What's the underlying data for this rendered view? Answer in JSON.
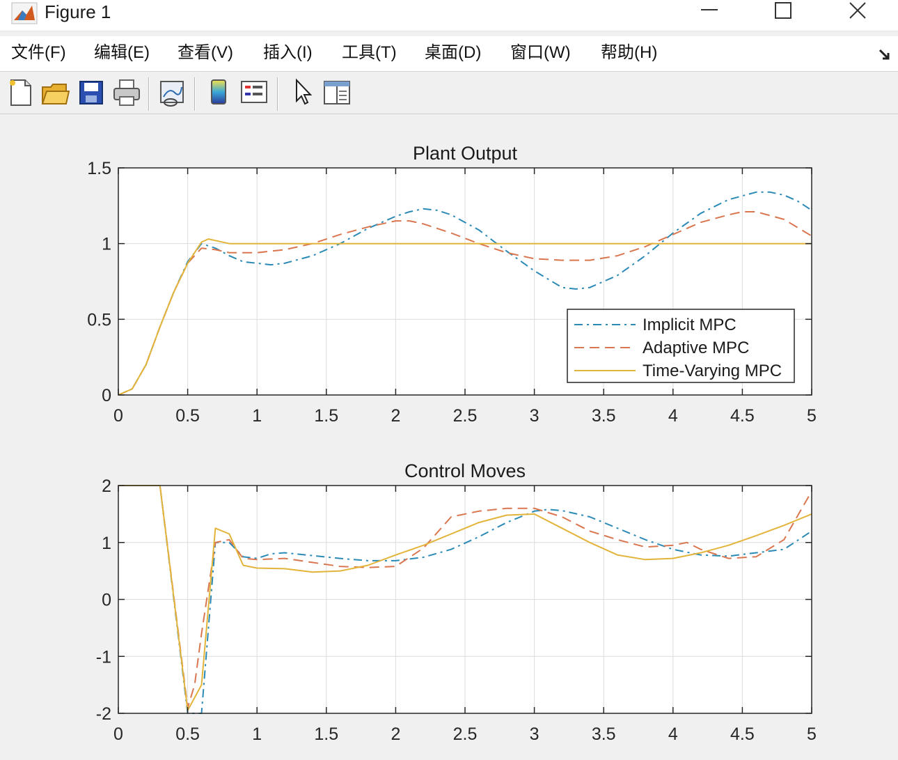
{
  "window": {
    "title": "Figure 1",
    "app_icon": "matlab-logo-icon",
    "controls": [
      "minimize-icon",
      "maximize-icon",
      "close-icon"
    ]
  },
  "menu": {
    "items": [
      "文件(F)",
      "编辑(E)",
      "查看(V)",
      "插入(I)",
      "工具(T)",
      "桌面(D)",
      "窗口(W)",
      "帮助(H)"
    ],
    "dock_icon": "dock-arrow-icon"
  },
  "toolbar": {
    "buttons": [
      "new-figure-icon",
      "open-file-icon",
      "save-icon",
      "print-icon",
      "link-plot-icon",
      "colorbar-icon",
      "legend-icon",
      "edit-plot-arrow-icon",
      "property-inspector-icon"
    ]
  },
  "colors": {
    "implicit": "#2a8ab5",
    "adaptive": "#d9764f",
    "timevarying": "#e3b43a",
    "grid": "#dcdcdc",
    "axes_bg": "#ffffff"
  },
  "chart_data": [
    {
      "type": "line",
      "title": "Plant Output",
      "xlabel": "",
      "ylabel": "",
      "xlim": [
        0,
        5
      ],
      "ylim": [
        0,
        1.5
      ],
      "xticks": [
        "0",
        "0.5",
        "1",
        "1.5",
        "2",
        "2.5",
        "3",
        "3.5",
        "4",
        "4.5",
        "5"
      ],
      "yticks": [
        "0",
        "0.5",
        "1",
        "1.5"
      ],
      "grid": true,
      "legend": "bottom-right",
      "series": [
        {
          "name": "Implicit MPC",
          "style": "dashdot",
          "points": [
            [
              0,
              0
            ],
            [
              0.1,
              0.04
            ],
            [
              0.2,
              0.2
            ],
            [
              0.3,
              0.45
            ],
            [
              0.4,
              0.68
            ],
            [
              0.5,
              0.88
            ],
            [
              0.6,
              1.0
            ],
            [
              0.7,
              0.97
            ],
            [
              0.8,
              0.92
            ],
            [
              0.9,
              0.88
            ],
            [
              1.0,
              0.87
            ],
            [
              1.1,
              0.86
            ],
            [
              1.2,
              0.87
            ],
            [
              1.4,
              0.92
            ],
            [
              1.6,
              1.0
            ],
            [
              1.8,
              1.1
            ],
            [
              2.0,
              1.18
            ],
            [
              2.1,
              1.21
            ],
            [
              2.2,
              1.23
            ],
            [
              2.3,
              1.22
            ],
            [
              2.4,
              1.19
            ],
            [
              2.6,
              1.09
            ],
            [
              2.8,
              0.95
            ],
            [
              3.0,
              0.82
            ],
            [
              3.2,
              0.71
            ],
            [
              3.3,
              0.7
            ],
            [
              3.4,
              0.71
            ],
            [
              3.6,
              0.79
            ],
            [
              3.8,
              0.92
            ],
            [
              4.0,
              1.07
            ],
            [
              4.2,
              1.2
            ],
            [
              4.4,
              1.29
            ],
            [
              4.6,
              1.34
            ],
            [
              4.7,
              1.34
            ],
            [
              4.8,
              1.32
            ],
            [
              4.9,
              1.28
            ],
            [
              5.0,
              1.22
            ]
          ]
        },
        {
          "name": "Adaptive MPC",
          "style": "dashed",
          "points": [
            [
              0,
              0
            ],
            [
              0.1,
              0.04
            ],
            [
              0.2,
              0.2
            ],
            [
              0.3,
              0.45
            ],
            [
              0.4,
              0.68
            ],
            [
              0.5,
              0.87
            ],
            [
              0.6,
              0.97
            ],
            [
              0.7,
              0.96
            ],
            [
              0.8,
              0.94
            ],
            [
              1.0,
              0.94
            ],
            [
              1.2,
              0.96
            ],
            [
              1.4,
              1.0
            ],
            [
              1.6,
              1.06
            ],
            [
              1.8,
              1.11
            ],
            [
              2.0,
              1.15
            ],
            [
              2.1,
              1.15
            ],
            [
              2.2,
              1.13
            ],
            [
              2.4,
              1.07
            ],
            [
              2.6,
              1.0
            ],
            [
              2.8,
              0.94
            ],
            [
              3.0,
              0.9
            ],
            [
              3.2,
              0.89
            ],
            [
              3.4,
              0.89
            ],
            [
              3.6,
              0.92
            ],
            [
              3.8,
              0.98
            ],
            [
              4.0,
              1.06
            ],
            [
              4.2,
              1.14
            ],
            [
              4.4,
              1.19
            ],
            [
              4.5,
              1.21
            ],
            [
              4.6,
              1.21
            ],
            [
              4.8,
              1.16
            ],
            [
              5.0,
              1.05
            ]
          ]
        },
        {
          "name": "Time-Varying MPC",
          "style": "solid",
          "points": [
            [
              0,
              0
            ],
            [
              0.1,
              0.04
            ],
            [
              0.2,
              0.2
            ],
            [
              0.3,
              0.45
            ],
            [
              0.4,
              0.68
            ],
            [
              0.5,
              0.87
            ],
            [
              0.6,
              1.01
            ],
            [
              0.65,
              1.03
            ],
            [
              0.7,
              1.02
            ],
            [
              0.8,
              1.0
            ],
            [
              0.9,
              1.0
            ],
            [
              1.0,
              1.0
            ],
            [
              5.0,
              1.0
            ]
          ]
        }
      ]
    },
    {
      "type": "line",
      "title": "Control Moves",
      "xlabel": "",
      "ylabel": "",
      "xlim": [
        0,
        5
      ],
      "ylim": [
        -2,
        2
      ],
      "xticks": [
        "0",
        "0.5",
        "1",
        "1.5",
        "2",
        "2.5",
        "3",
        "3.5",
        "4",
        "4.5",
        "5"
      ],
      "yticks": [
        "-2",
        "-1",
        "0",
        "1",
        "2"
      ],
      "grid": true,
      "series": [
        {
          "name": "Implicit MPC",
          "style": "dashdot",
          "points": [
            [
              0,
              2
            ],
            [
              0.3,
              2
            ],
            [
              0.5,
              -2
            ],
            [
              0.6,
              -2
            ],
            [
              0.7,
              1.0
            ],
            [
              0.8,
              1.0
            ],
            [
              0.9,
              0.75
            ],
            [
              1.0,
              0.72
            ],
            [
              1.1,
              0.8
            ],
            [
              1.2,
              0.82
            ],
            [
              1.4,
              0.77
            ],
            [
              1.6,
              0.72
            ],
            [
              1.8,
              0.68
            ],
            [
              2.0,
              0.68
            ],
            [
              2.2,
              0.74
            ],
            [
              2.4,
              0.88
            ],
            [
              2.6,
              1.1
            ],
            [
              2.8,
              1.35
            ],
            [
              3.0,
              1.55
            ],
            [
              3.1,
              1.58
            ],
            [
              3.2,
              1.56
            ],
            [
              3.4,
              1.45
            ],
            [
              3.6,
              1.25
            ],
            [
              3.8,
              1.05
            ],
            [
              4.0,
              0.88
            ],
            [
              4.2,
              0.78
            ],
            [
              4.4,
              0.76
            ],
            [
              4.6,
              0.82
            ],
            [
              4.8,
              0.88
            ],
            [
              5.0,
              1.2
            ]
          ]
        },
        {
          "name": "Adaptive MPC",
          "style": "dashed",
          "points": [
            [
              0,
              2
            ],
            [
              0.3,
              2
            ],
            [
              0.5,
              -1.9
            ],
            [
              0.55,
              -1.5
            ],
            [
              0.6,
              -0.6
            ],
            [
              0.7,
              1.0
            ],
            [
              0.8,
              1.05
            ],
            [
              0.9,
              0.72
            ],
            [
              1.0,
              0.7
            ],
            [
              1.2,
              0.72
            ],
            [
              1.4,
              0.65
            ],
            [
              1.6,
              0.58
            ],
            [
              1.8,
              0.56
            ],
            [
              2.0,
              0.58
            ],
            [
              2.2,
              0.9
            ],
            [
              2.4,
              1.45
            ],
            [
              2.6,
              1.55
            ],
            [
              2.8,
              1.6
            ],
            [
              3.0,
              1.6
            ],
            [
              3.2,
              1.45
            ],
            [
              3.4,
              1.2
            ],
            [
              3.6,
              1.05
            ],
            [
              3.8,
              0.92
            ],
            [
              4.0,
              0.95
            ],
            [
              4.1,
              1.0
            ],
            [
              4.2,
              0.88
            ],
            [
              4.4,
              0.72
            ],
            [
              4.6,
              0.75
            ],
            [
              4.8,
              1.05
            ],
            [
              5.0,
              1.9
            ]
          ]
        },
        {
          "name": "Time-Varying MPC",
          "style": "solid",
          "points": [
            [
              0,
              2
            ],
            [
              0.3,
              2
            ],
            [
              0.5,
              -1.95
            ],
            [
              0.6,
              -1.5
            ],
            [
              0.7,
              1.25
            ],
            [
              0.8,
              1.15
            ],
            [
              0.9,
              0.6
            ],
            [
              1.0,
              0.55
            ],
            [
              1.2,
              0.54
            ],
            [
              1.4,
              0.48
            ],
            [
              1.6,
              0.5
            ],
            [
              1.8,
              0.6
            ],
            [
              2.0,
              0.78
            ],
            [
              2.2,
              0.95
            ],
            [
              2.4,
              1.15
            ],
            [
              2.6,
              1.35
            ],
            [
              2.8,
              1.48
            ],
            [
              3.0,
              1.5
            ],
            [
              3.2,
              1.25
            ],
            [
              3.4,
              1.0
            ],
            [
              3.6,
              0.78
            ],
            [
              3.8,
              0.7
            ],
            [
              4.0,
              0.72
            ],
            [
              4.2,
              0.82
            ],
            [
              4.4,
              0.95
            ],
            [
              4.6,
              1.12
            ],
            [
              4.8,
              1.3
            ],
            [
              5.0,
              1.5
            ]
          ]
        }
      ]
    }
  ]
}
